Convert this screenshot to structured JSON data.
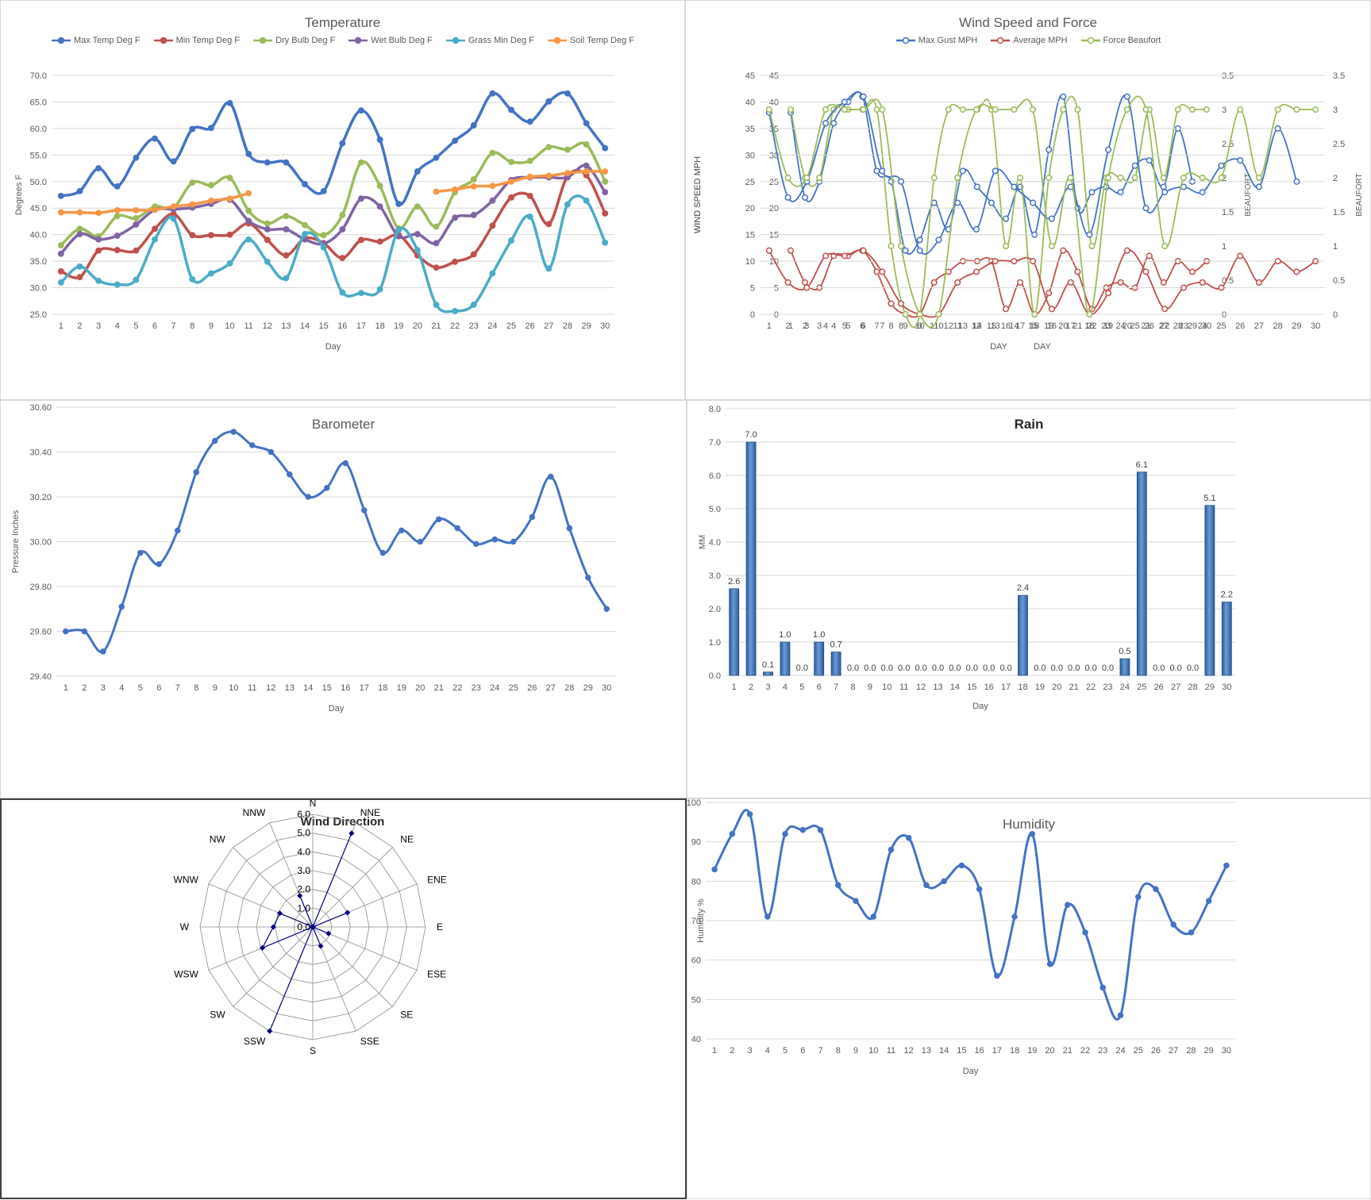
{
  "chart_data": [
    {
      "id": "temp",
      "type": "line",
      "title": "Temperature",
      "xlabel": "Day",
      "ylabel": "Degrees F",
      "ylim": [
        25,
        70
      ],
      "ytick_step": 5,
      "ytick_format": "1",
      "categories": [
        "1",
        "2",
        "3",
        "4",
        "5",
        "6",
        "7",
        "8",
        "9",
        "10",
        "11",
        "12",
        "13",
        "14",
        "15",
        "16",
        "17",
        "18",
        "19",
        "20",
        "21",
        "22",
        "23",
        "24",
        "25",
        "26",
        "27",
        "28",
        "29",
        "30"
      ],
      "grid": true,
      "legend": "top",
      "series": [
        {
          "name": "Max Temp Deg F",
          "color": "#4472c4",
          "values": [
            47.3,
            48.2,
            52.5,
            49.1,
            54.5,
            58.1,
            53.8,
            59.9,
            60.1,
            64.8,
            55.2,
            53.6,
            53.6,
            49.5,
            48.2,
            57.2,
            63.4,
            57.9,
            45.8,
            51.9,
            54.5,
            57.7,
            60.6,
            66.6,
            63.5,
            61.3,
            65.1,
            66.6,
            61.0,
            56.3
          ]
        },
        {
          "name": "Min Temp Deg F",
          "color": "#c0504d",
          "values": [
            33.1,
            32.0,
            37.0,
            37.1,
            37.0,
            41.1,
            43.9,
            39.9,
            39.9,
            40.0,
            42.1,
            39.0,
            36.1,
            39.3,
            38.4,
            35.6,
            39.0,
            38.7,
            39.9,
            36.1,
            33.8,
            34.9,
            36.3,
            41.7,
            47.0,
            47.3,
            42.0,
            51.0,
            51.2,
            44.0
          ]
        },
        {
          "name": "Dry Bulb Deg F",
          "color": "#9bbb59",
          "values": [
            38.0,
            41.1,
            39.7,
            43.5,
            43.1,
            45.3,
            45.1,
            49.8,
            49.3,
            50.7,
            44.5,
            42.1,
            43.5,
            41.8,
            39.9,
            43.7,
            53.6,
            49.2,
            41.2,
            45.3,
            41.5,
            48.0,
            50.4,
            55.4,
            53.7,
            53.9,
            56.5,
            56.0,
            57.0,
            50.0
          ]
        },
        {
          "name": "Wet Bulb Deg F",
          "color": "#8064a2",
          "values": [
            36.4,
            40.1,
            39.1,
            39.8,
            41.9,
            44.7,
            44.8,
            45.1,
            45.8,
            46.6,
            42.6,
            41.0,
            41.0,
            39.1,
            38.3,
            41.0,
            46.8,
            45.3,
            39.7,
            40.1,
            38.4,
            43.2,
            43.7,
            46.4,
            50.3,
            50.8,
            50.8,
            50.8,
            53.0,
            48.0
          ]
        },
        {
          "name": "Grass Min Deg F",
          "color": "#4bacc6",
          "values": [
            31.0,
            34.0,
            31.3,
            30.6,
            31.5,
            39.1,
            43.0,
            31.6,
            32.7,
            34.6,
            39.1,
            34.9,
            31.8,
            40.1,
            37.6,
            29.1,
            29.0,
            29.7,
            40.9,
            37.1,
            26.8,
            25.6,
            26.8,
            32.7,
            38.9,
            43.4,
            33.6,
            45.7,
            46.4,
            38.5
          ]
        },
        {
          "name": "Soil Temp Deg F",
          "color": "#f79646",
          "values": [
            44.2,
            44.2,
            44.1,
            44.6,
            44.6,
            44.7,
            45.3,
            45.7,
            46.4,
            46.8,
            47.8,
            null,
            null,
            null,
            null,
            null,
            null,
            null,
            null,
            null,
            48.1,
            48.5,
            49.1,
            49.2,
            50.0,
            50.9,
            51.1,
            51.6,
            51.9,
            51.9
          ]
        }
      ]
    },
    {
      "id": "wind",
      "type": "line",
      "title": "Wind Speed and Force",
      "xlabel": "DAY",
      "ylabel": "WIND SPEED MPH",
      "y2label": "BEAUFORT",
      "ylim": [
        0,
        45
      ],
      "ytick_step": 5,
      "ytick_format": "0",
      "y2lim": [
        0,
        3.5
      ],
      "y2tick_step": 0.5,
      "categories": [
        "1",
        "2",
        "3",
        "4",
        "5",
        "6",
        "7",
        "8",
        "9",
        "10",
        "11",
        "12",
        "13",
        "14",
        "15",
        "16",
        "17",
        "18",
        "19",
        "20",
        "21",
        "22",
        "23",
        "24",
        "25",
        "26",
        "27",
        "28",
        "29",
        "30"
      ],
      "grid": true,
      "legend": "top",
      "series": [
        {
          "name": "Max Gust MPH",
          "color": "#4472c4",
          "axis": "left",
          "values": [
            38,
            22,
            25,
            36,
            40,
            41,
            27,
            25,
            12,
            14,
            21,
            16,
            27,
            24,
            21,
            18,
            24,
            15,
            31,
            41,
            20,
            23,
            24,
            23,
            28,
            29,
            24,
            35,
            25,
            null
          ]
        },
        {
          "name": "Average MPH",
          "color": "#c0504d",
          "axis": "left",
          "values": [
            12,
            6,
            5,
            11,
            11,
            12,
            8,
            2,
            0,
            0,
            6,
            8,
            10,
            10,
            10,
            1,
            6,
            0,
            4,
            12,
            8,
            1,
            5,
            6,
            5,
            11,
            6,
            10,
            8,
            10
          ]
        },
        {
          "name": "Force Beaufort",
          "color": "#9bbb59",
          "axis": "right",
          "values": [
            3,
            2,
            2,
            3,
            3,
            3,
            3,
            1,
            0,
            0,
            2,
            3,
            3,
            3,
            3,
            1,
            2,
            0,
            2,
            3,
            3,
            1,
            2,
            2,
            2,
            3,
            2,
            3,
            3,
            3
          ]
        }
      ]
    },
    {
      "id": "baro",
      "type": "line",
      "title": "Barometer",
      "xlabel": "Day",
      "ylabel": "Pressure Inches",
      "ylim": [
        29.4,
        30.6
      ],
      "ytick_step": 0.2,
      "ytick_format": "2",
      "categories": [
        "1",
        "2",
        "3",
        "4",
        "5",
        "6",
        "7",
        "8",
        "9",
        "10",
        "11",
        "12",
        "13",
        "14",
        "15",
        "16",
        "17",
        "18",
        "19",
        "20",
        "21",
        "22",
        "23",
        "24",
        "25",
        "26",
        "27",
        "28",
        "29",
        "30"
      ],
      "grid": true,
      "series": [
        {
          "name": "Barometer",
          "color": "#4472c4",
          "values": [
            29.6,
            29.6,
            29.51,
            29.71,
            29.95,
            29.9,
            30.05,
            30.31,
            30.45,
            30.49,
            30.43,
            30.4,
            30.3,
            30.2,
            30.24,
            30.35,
            30.14,
            29.95,
            30.05,
            30.0,
            30.1,
            30.06,
            29.99,
            30.01,
            30.0,
            30.11,
            30.29,
            30.06,
            29.84,
            29.7
          ]
        }
      ]
    },
    {
      "id": "rain",
      "type": "bar",
      "title": "Rain",
      "xlabel": "Day",
      "ylabel": "MM",
      "ylim": [
        0,
        8
      ],
      "ytick_step": 1,
      "ytick_format": "1",
      "categories": [
        "1",
        "2",
        "3",
        "4",
        "5",
        "6",
        "7",
        "8",
        "9",
        "10",
        "11",
        "12",
        "13",
        "14",
        "15",
        "16",
        "17",
        "18",
        "19",
        "20",
        "21",
        "22",
        "23",
        "24",
        "25",
        "26",
        "27",
        "28",
        "29",
        "30"
      ],
      "values": [
        2.6,
        7.0,
        0.1,
        1.0,
        0.0,
        1.0,
        0.7,
        0.0,
        0.0,
        0.0,
        0.0,
        0.0,
        0.0,
        0.0,
        0.0,
        0.0,
        0.0,
        2.4,
        0.0,
        0.0,
        0.0,
        0.0,
        0.0,
        0.5,
        6.1,
        0.0,
        0.0,
        0.0,
        5.1,
        2.2
      ],
      "data_labels": [
        "2.6",
        "7.0",
        "0.1",
        "1.0",
        "0.0",
        "1.0",
        "0.7",
        "0.0",
        "0.0",
        "0.0",
        "0.0",
        "0.0",
        "0.0",
        "0.0",
        "0.0",
        "0.0",
        "0.0",
        "2.4",
        "0.0",
        "0.0",
        "0.0",
        "0.0",
        "0.0",
        "0.5",
        "6.1",
        "0.0",
        "0.0",
        "0.0",
        "5.1",
        "2.2"
      ],
      "grid": true,
      "color": "#4f81bd"
    },
    {
      "id": "dir",
      "type": "radar",
      "title": "Wind Direction",
      "rlim": [
        0,
        6
      ],
      "rtick_step": 1,
      "rtick_labels": [
        "0.0",
        "1.0",
        "2.0",
        "3.0",
        "4.0",
        "5.0",
        "6.0"
      ],
      "categories": [
        "N",
        "NNE",
        "NE",
        "ENE",
        "E",
        "ESE",
        "SE",
        "SSE",
        "S",
        "SSW",
        "SW",
        "WSW",
        "W",
        "WNW",
        "NW",
        "NNW"
      ],
      "values": [
        0,
        5.4,
        0,
        2.0,
        0,
        0.9,
        0,
        1.1,
        0,
        6.0,
        0,
        2.9,
        2.1,
        1.9,
        0,
        1.8
      ],
      "color": "#000080"
    },
    {
      "id": "hum",
      "type": "line",
      "title": "Humidity",
      "xlabel": "Day",
      "ylabel": "Humidity %",
      "ylim": [
        40,
        100
      ],
      "ytick_step": 10,
      "ytick_format": "0",
      "categories": [
        "1",
        "2",
        "3",
        "4",
        "5",
        "6",
        "7",
        "8",
        "9",
        "10",
        "11",
        "12",
        "13",
        "14",
        "15",
        "16",
        "17",
        "18",
        "19",
        "20",
        "21",
        "22",
        "23",
        "24",
        "25",
        "26",
        "27",
        "28",
        "29",
        "30"
      ],
      "grid": true,
      "series": [
        {
          "name": "Humidity",
          "color": "#4472c4",
          "values": [
            83,
            92,
            97,
            71,
            92,
            93,
            93,
            79,
            75,
            71,
            88,
            91,
            79,
            80,
            84,
            78,
            56,
            71,
            92,
            59,
            74,
            67,
            53,
            46,
            76,
            78,
            69,
            67,
            75,
            84
          ]
        }
      ]
    }
  ]
}
